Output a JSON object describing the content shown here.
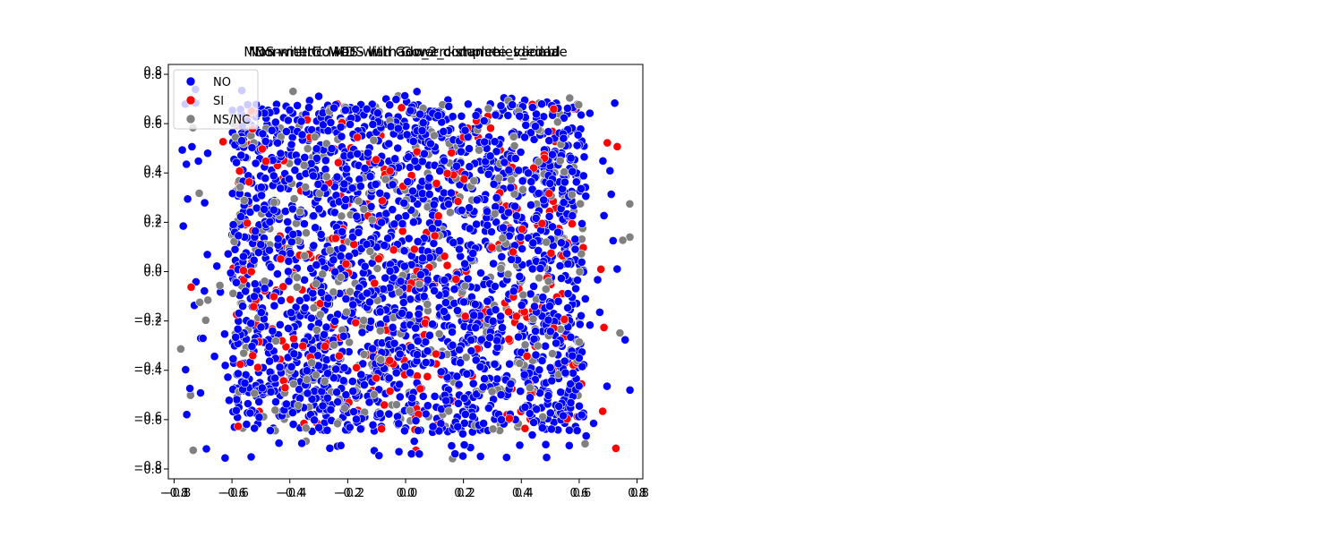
{
  "chart_data": {
    "type": "scatter",
    "titles": [
      "Non-metric MDS with Gower distance - Idioma",
      "MDS with Gower - llamado_2_complete_variable",
      "Non-metric MDS with Gower - dummies_edad"
    ],
    "xlabel": "",
    "ylabel": "",
    "xlim": [
      -0.82,
      0.82
    ],
    "ylim": [
      -0.84,
      0.84
    ],
    "xticks": [
      "−0.8",
      "−0.6",
      "−0.4",
      "−0.2",
      "0.0",
      "0.2",
      "0.4",
      "0.6",
      "0.8"
    ],
    "xtick_values": [
      -0.8,
      -0.6,
      -0.4,
      -0.2,
      0.0,
      0.2,
      0.4,
      0.6,
      0.8
    ],
    "yticks": [
      "−0.8",
      "−0.6",
      "−0.4",
      "−0.2",
      "0.0",
      "0.2",
      "0.4",
      "0.6",
      "0.8"
    ],
    "ytick_values": [
      -0.8,
      -0.6,
      -0.4,
      -0.2,
      0.0,
      0.2,
      0.4,
      0.6,
      0.8
    ],
    "legend_position": "upper-left",
    "series": [
      {
        "name": "NO",
        "color": "#0000ff",
        "approx_count": 2200
      },
      {
        "name": "SI",
        "color": "#ff0000",
        "approx_count": 300
      },
      {
        "name": "NS/NC",
        "color": "#808080",
        "approx_count": 450
      }
    ],
    "point_distribution": {
      "x_range": [
        -0.78,
        0.78
      ],
      "y_range": [
        -0.76,
        0.74
      ],
      "core_x_range": [
        -0.6,
        0.62
      ],
      "core_y_range": [
        -0.65,
        0.68
      ]
    },
    "grid": false
  }
}
